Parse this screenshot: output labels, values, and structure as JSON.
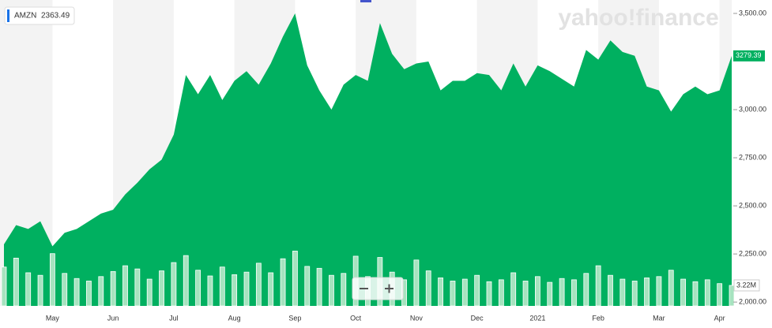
{
  "chart_data": {
    "type": "area",
    "watermark": "yahoo!finance",
    "categories": [
      null,
      null,
      null,
      null,
      "May",
      null,
      null,
      null,
      null,
      "Jun",
      null,
      null,
      null,
      null,
      "Jul",
      null,
      null,
      null,
      null,
      "Aug",
      null,
      null,
      null,
      null,
      "Sep",
      null,
      null,
      null,
      null,
      "Oct",
      null,
      null,
      null,
      null,
      "Nov",
      null,
      null,
      null,
      null,
      "Dec",
      null,
      null,
      null,
      null,
      "2021",
      null,
      null,
      null,
      null,
      "Feb",
      null,
      null,
      null,
      null,
      "Mar",
      null,
      null,
      null,
      null,
      "Apr",
      null
    ],
    "series": [
      {
        "name": "AMZN",
        "quote": 2363.49,
        "color": "#00b060",
        "values": [
          2300,
          2400,
          2380,
          2420,
          2290,
          2360,
          2380,
          2420,
          2460,
          2480,
          2560,
          2620,
          2690,
          2740,
          2870,
          3180,
          3080,
          3180,
          3050,
          3150,
          3200,
          3130,
          3240,
          3380,
          3500,
          3230,
          3100,
          3000,
          3130,
          3180,
          3150,
          3450,
          3290,
          3210,
          3240,
          3250,
          3100,
          3150,
          3150,
          3190,
          3180,
          3100,
          3240,
          3120,
          3230,
          3200,
          3160,
          3120,
          3310,
          3260,
          3360,
          3300,
          3280,
          3120,
          3100,
          2990,
          3080,
          3120,
          3080,
          3100,
          3279.39
        ]
      },
      {
        "name": "Volume",
        "axis": "y2",
        "color": "#a6e3bf",
        "values": [
          6.1,
          7.5,
          5.2,
          4.8,
          8.2,
          5.1,
          4.3,
          3.9,
          4.6,
          5.4,
          6.3,
          5.8,
          4.2,
          5.5,
          6.8,
          7.9,
          5.6,
          4.7,
          6.1,
          4.9,
          5.3,
          6.7,
          5.2,
          7.4,
          8.6,
          6.2,
          5.9,
          4.8,
          5.1,
          7.8,
          4.6,
          7.6,
          5.3,
          4.1,
          7.2,
          5.5,
          4.4,
          3.9,
          4.2,
          4.8,
          3.8,
          4.1,
          5.2,
          3.9,
          4.6,
          3.7,
          4.3,
          4.1,
          5.1,
          6.3,
          4.8,
          4.2,
          3.9,
          4.4,
          4.6,
          5.6,
          4.2,
          3.8,
          4.1,
          3.5,
          3.22
        ]
      }
    ],
    "ylim": [
      1980,
      3537
    ],
    "yticks": [
      {
        "value": 2000,
        "label": "2,000.00"
      },
      {
        "value": 2250,
        "label": "2,250.00"
      },
      {
        "value": 2500,
        "label": "2,500.00"
      },
      {
        "value": 2750,
        "label": "2,750.00"
      },
      {
        "value": 3000,
        "label": "3,000.00"
      },
      {
        "value": 3500,
        "label": "3,500.00"
      }
    ],
    "y2lim": [
      0,
      47
    ],
    "y2ticks": [
      {
        "value": 3.22,
        "label": "3.22M"
      }
    ]
  }
}
